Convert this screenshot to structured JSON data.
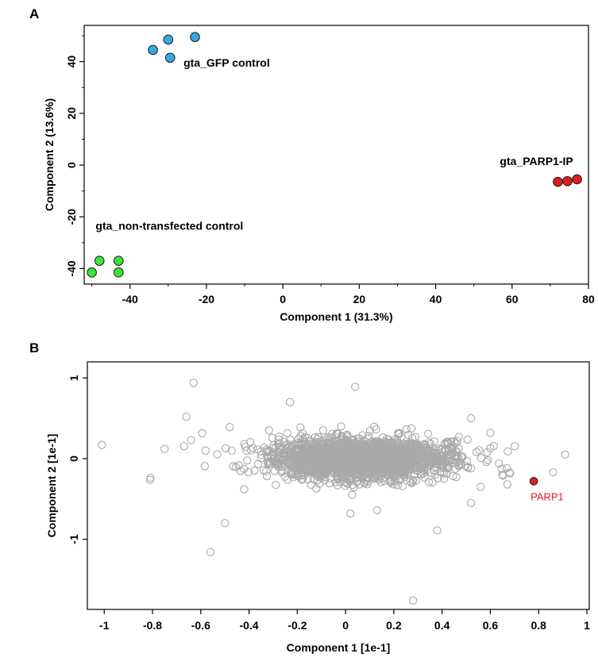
{
  "figure": {
    "panel_a_letter": "A",
    "panel_b_letter": "B"
  },
  "chart_data": [
    {
      "type": "scatter",
      "panel": "A",
      "xlabel": "Component 1 (31.3%)",
      "ylabel": "Component 2 (13.6%)",
      "xlim": [
        -52,
        80
      ],
      "ylim": [
        -46,
        54
      ],
      "xticks": [
        -40,
        -20,
        0,
        20,
        40,
        60,
        80
      ],
      "yticks": [
        -40,
        -20,
        0,
        20,
        40
      ],
      "grid": false,
      "series": [
        {
          "label": "gta_GFP control",
          "color": "#3aa7e4",
          "points": [
            [
              -34,
              44.5
            ],
            [
              -30,
              48.5
            ],
            [
              -23,
              49.5
            ],
            [
              -29.5,
              41.5
            ]
          ]
        },
        {
          "label": "gta_PARP1-IP",
          "color": "#dd1f1f",
          "points": [
            [
              72,
              -6.5
            ],
            [
              74.5,
              -6.2
            ],
            [
              77,
              -5.5
            ]
          ]
        },
        {
          "label": "gta_non-transfected control",
          "color": "#3de23a",
          "points": [
            [
              -48,
              -37
            ],
            [
              -43,
              -37
            ],
            [
              -50,
              -41.5
            ],
            [
              -43,
              -41.5
            ]
          ]
        }
      ]
    },
    {
      "type": "scatter",
      "panel": "B",
      "xlabel": "Component 1 [1e-1]",
      "ylabel": "Component 2 [1e-1]",
      "xlim": [
        -1.07,
        1.01
      ],
      "ylim": [
        -1.87,
        1.2
      ],
      "xticks": [
        -1,
        -0.8,
        -0.6,
        -0.4,
        -0.2,
        0,
        0.2,
        0.4,
        0.6,
        0.8,
        1
      ],
      "xtick_labels": [
        "-1",
        "-0.8",
        "-0.6",
        "-0.4",
        "-0.2",
        "0",
        "0.2",
        "0.4",
        "0.6",
        "0.8",
        "1"
      ],
      "yticks": [
        -1,
        0,
        1
      ],
      "ytick_labels": [
        "-1",
        "0",
        "1"
      ],
      "grid": false,
      "point_color": "#a9a9a9",
      "cloud": {
        "center_x": 0.06,
        "center_y": 0.0,
        "sd_x": 0.16,
        "sd_y": 0.11,
        "n": 2600
      },
      "outliers": [
        [
          -1.01,
          0.17
        ],
        [
          -0.75,
          0.12
        ],
        [
          -0.63,
          0.94
        ],
        [
          -0.66,
          0.52
        ],
        [
          -0.64,
          0.23
        ],
        [
          -0.58,
          0.1
        ],
        [
          -0.5,
          -0.8
        ],
        [
          -0.56,
          -1.16
        ],
        [
          -0.48,
          0.39
        ],
        [
          -0.23,
          0.7
        ],
        [
          0.04,
          0.89
        ],
        [
          0.28,
          -1.76
        ],
        [
          0.38,
          -0.89
        ],
        [
          0.52,
          0.5
        ],
        [
          0.6,
          0.32
        ],
        [
          0.91,
          0.05
        ],
        [
          0.86,
          -0.17
        ],
        [
          0.68,
          -0.17
        ],
        [
          0.65,
          -0.2
        ],
        [
          0.56,
          -0.35
        ],
        [
          0.52,
          -0.55
        ],
        [
          0.02,
          -0.68
        ],
        [
          0.13,
          -0.64
        ],
        [
          -0.42,
          -0.38
        ]
      ],
      "highlight": {
        "label": "PARP1",
        "x": 0.78,
        "y": -0.28,
        "color": "#dd1f1f"
      }
    }
  ]
}
